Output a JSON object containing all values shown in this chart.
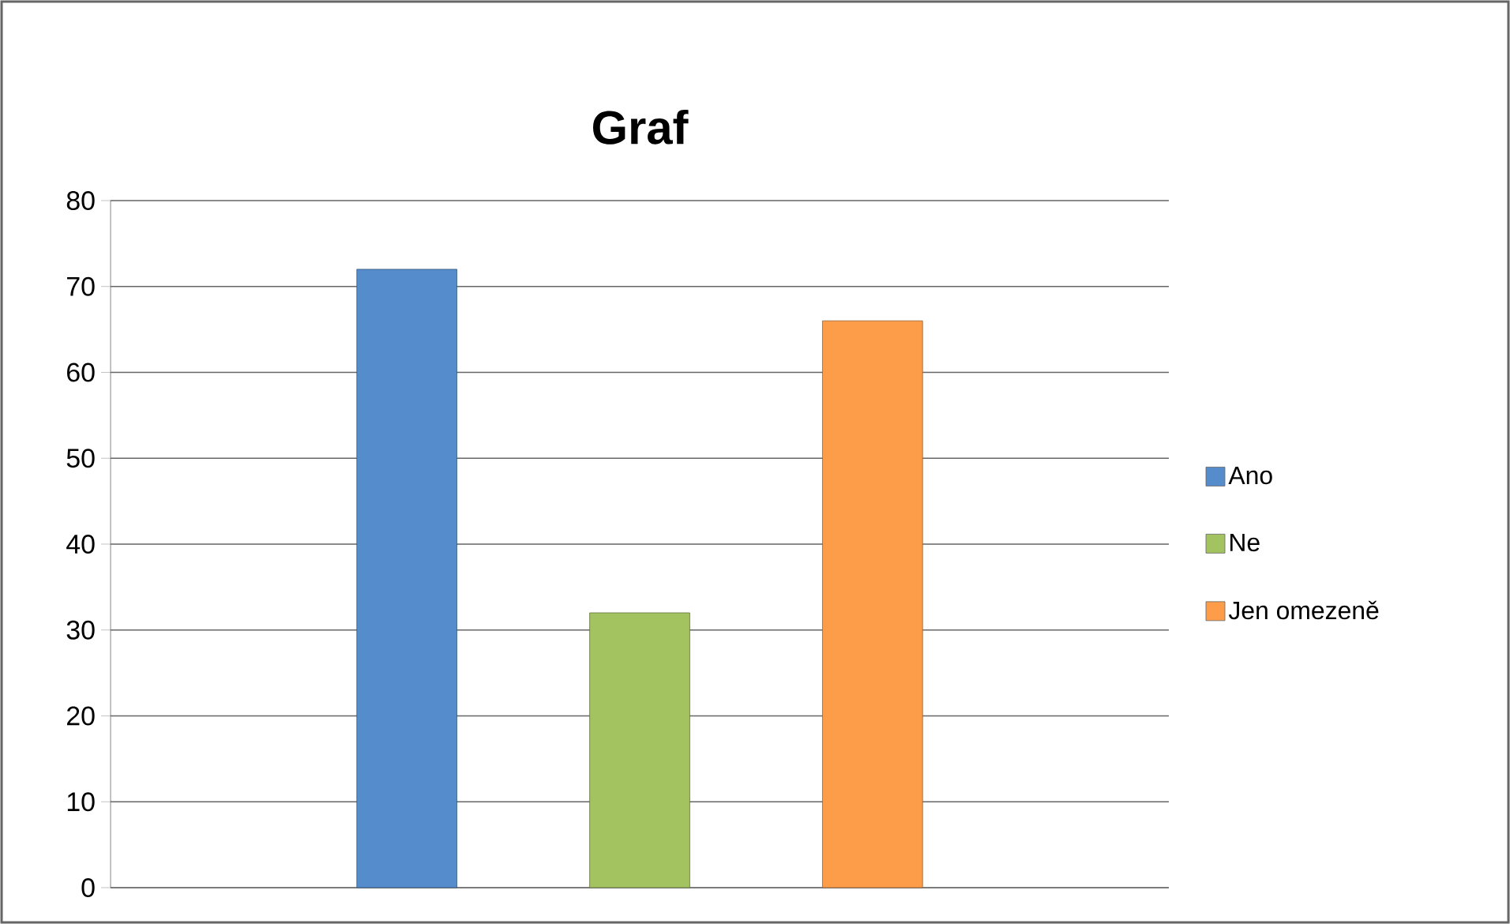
{
  "chart_data": {
    "type": "bar",
    "title": "Graf",
    "categories": [
      null
    ],
    "series": [
      {
        "name": "Ano",
        "color": "#558ccc",
        "values": [
          72
        ]
      },
      {
        "name": "Ne",
        "color": "#a3c360",
        "values": [
          32
        ]
      },
      {
        "name": "Jen omezeně",
        "color": "#fd9d4a",
        "values": [
          66
        ]
      }
    ],
    "ylim": [
      0,
      80
    ],
    "yticks": [
      0,
      10,
      20,
      30,
      40,
      50,
      60,
      70,
      80
    ],
    "grid": "y",
    "legend": "right",
    "tick_labels": "y"
  }
}
